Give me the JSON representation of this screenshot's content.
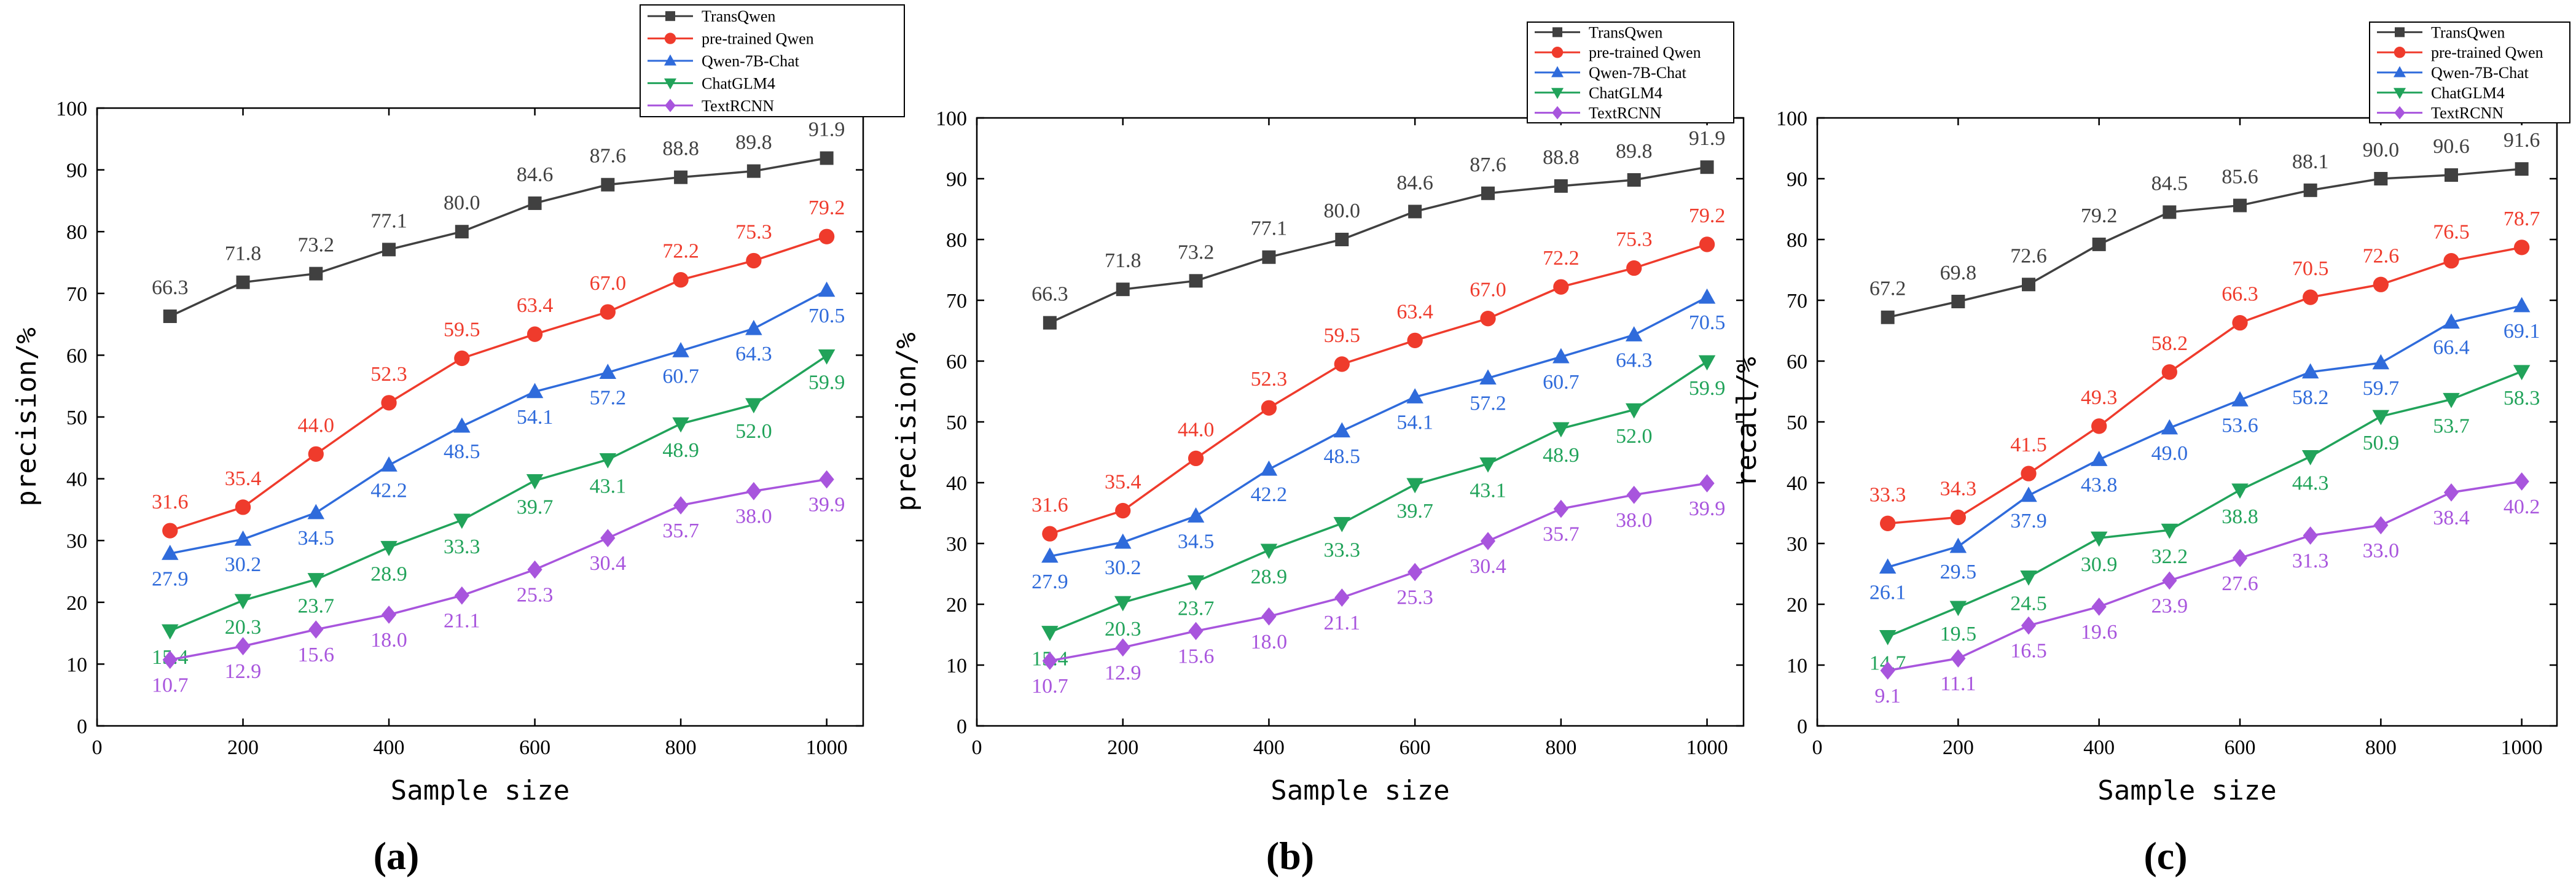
{
  "figure": {
    "panel_labels": [
      "(a)",
      "(b)",
      "(c)"
    ]
  },
  "colors": {
    "TransQwen": "#404040",
    "pre-trained Qwen": "#ef3b2c",
    "Qwen-7B-Chat": "#2f6bdb",
    "ChatGLM4": "#21a35a",
    "TextRCNN": "#a855dd"
  },
  "chart_data": [
    {
      "type": "line",
      "panel": "(a)",
      "xlabel": "Sample size",
      "ylabel": "precision/%",
      "xlim": [
        0,
        1050
      ],
      "ylim": [
        0,
        100
      ],
      "x_ticks": [
        0,
        200,
        400,
        600,
        800,
        1000
      ],
      "y_ticks": [
        0,
        10,
        20,
        30,
        40,
        50,
        60,
        70,
        80,
        90,
        100
      ],
      "legend_position": "top-right",
      "x": [
        100,
        200,
        300,
        400,
        500,
        600,
        700,
        800,
        900,
        1000
      ],
      "series": [
        {
          "name": "TransQwen",
          "marker": "square",
          "values": [
            66.3,
            71.8,
            73.2,
            77.1,
            80.0,
            84.6,
            87.6,
            88.8,
            89.8,
            91.9
          ],
          "labels": [
            "66.3",
            "71.8",
            "73.2",
            "77.1",
            "80.0",
            "84.6",
            "87.6",
            "88.8",
            "89.8",
            "91.9"
          ]
        },
        {
          "name": "pre-trained Qwen",
          "marker": "circle",
          "values": [
            31.6,
            35.4,
            44.0,
            52.3,
            59.5,
            63.4,
            67.0,
            72.2,
            75.3,
            79.2
          ],
          "labels": [
            "31.6",
            "35.4",
            "44.0",
            "52.3",
            "59.5",
            "63.4",
            "67.0",
            "72.2",
            "75.3",
            "79.2"
          ]
        },
        {
          "name": "Qwen-7B-Chat",
          "marker": "triangle-up",
          "values": [
            27.9,
            30.2,
            34.5,
            42.2,
            48.5,
            54.1,
            57.2,
            60.7,
            64.3,
            70.5
          ],
          "labels": [
            "27.9",
            "30.2",
            "34.5",
            "42.2",
            "48.5",
            "54.1",
            "57.2",
            "60.7",
            "64.3",
            "70.5"
          ]
        },
        {
          "name": "ChatGLM4",
          "marker": "triangle-down",
          "values": [
            15.4,
            20.3,
            23.7,
            28.9,
            33.3,
            39.7,
            43.1,
            48.9,
            52.0,
            59.9
          ],
          "labels": [
            "15.4",
            "20.3",
            "23.7",
            "28.9",
            "33.3",
            "39.7",
            "43.1",
            "48.9",
            "52.0",
            "59.9"
          ]
        },
        {
          "name": "TextRCNN",
          "marker": "diamond",
          "values": [
            10.7,
            12.9,
            15.6,
            18.0,
            21.1,
            25.3,
            30.4,
            35.7,
            38.0,
            39.9
          ],
          "labels": [
            "10.7",
            "12.9",
            "15.6",
            "18.0",
            "21.1",
            "25.3",
            "30.4",
            "35.7",
            "38.0",
            "39.9"
          ]
        }
      ]
    },
    {
      "type": "line",
      "panel": "(b)",
      "xlabel": "Sample size",
      "ylabel": "precision/%",
      "xlim": [
        0,
        1050
      ],
      "ylim": [
        0,
        100
      ],
      "x_ticks": [
        0,
        200,
        400,
        600,
        800,
        1000
      ],
      "y_ticks": [
        0,
        10,
        20,
        30,
        40,
        50,
        60,
        70,
        80,
        90,
        100
      ],
      "legend_position": "top-right",
      "x": [
        100,
        200,
        300,
        400,
        500,
        600,
        700,
        800,
        900,
        1000
      ],
      "series": [
        {
          "name": "TransQwen",
          "marker": "square",
          "values": [
            66.3,
            71.8,
            73.2,
            77.1,
            80.0,
            84.6,
            87.6,
            88.8,
            89.8,
            91.9
          ],
          "labels": [
            "66.3",
            "71.8",
            "73.2",
            "77.1",
            "80.0",
            "84.6",
            "87.6",
            "88.8",
            "89.8",
            "91.9"
          ]
        },
        {
          "name": "pre-trained Qwen",
          "marker": "circle",
          "values": [
            31.6,
            35.4,
            44.0,
            52.3,
            59.5,
            63.4,
            67.0,
            72.2,
            75.3,
            79.2
          ],
          "labels": [
            "31.6",
            "35.4",
            "44.0",
            "52.3",
            "59.5",
            "63.4",
            "67.0",
            "72.2",
            "75.3",
            "79.2"
          ]
        },
        {
          "name": "Qwen-7B-Chat",
          "marker": "triangle-up",
          "values": [
            27.9,
            30.2,
            34.5,
            42.2,
            48.5,
            54.1,
            57.2,
            60.7,
            64.3,
            70.5
          ],
          "labels": [
            "27.9",
            "30.2",
            "34.5",
            "42.2",
            "48.5",
            "54.1",
            "57.2",
            "60.7",
            "64.3",
            "70.5"
          ]
        },
        {
          "name": "ChatGLM4",
          "marker": "triangle-down",
          "values": [
            15.4,
            20.3,
            23.7,
            28.9,
            33.3,
            39.7,
            43.1,
            48.9,
            52.0,
            59.9
          ],
          "labels": [
            "15.4",
            "20.3",
            "23.7",
            "28.9",
            "33.3",
            "39.7",
            "43.1",
            "48.9",
            "52.0",
            "59.9"
          ]
        },
        {
          "name": "TextRCNN",
          "marker": "diamond",
          "values": [
            10.7,
            12.9,
            15.6,
            18.0,
            21.1,
            25.3,
            30.4,
            35.7,
            38.0,
            39.9
          ],
          "labels": [
            "10.7",
            "12.9",
            "15.6",
            "18.0",
            "21.1",
            "25.3",
            "30.4",
            "35.7",
            "38.0",
            "39.9"
          ]
        }
      ]
    },
    {
      "type": "line",
      "panel": "(c)",
      "xlabel": "Sample size",
      "ylabel": "recall/%",
      "xlim": [
        0,
        1050
      ],
      "ylim": [
        0,
        100
      ],
      "x_ticks": [
        0,
        200,
        400,
        600,
        800,
        1000
      ],
      "y_ticks": [
        0,
        10,
        20,
        30,
        40,
        50,
        60,
        70,
        80,
        90,
        100
      ],
      "legend_position": "top-right",
      "x": [
        100,
        200,
        300,
        400,
        500,
        600,
        700,
        800,
        900,
        1000
      ],
      "series": [
        {
          "name": "TransQwen",
          "marker": "square",
          "values": [
            67.2,
            69.8,
            72.6,
            79.2,
            84.5,
            85.6,
            88.1,
            90.0,
            90.6,
            91.6
          ],
          "labels": [
            "67.2",
            "69.8",
            "72.6",
            "79.2",
            "84.5",
            "85.6",
            "88.1",
            "90.0",
            "90.6",
            "91.6"
          ]
        },
        {
          "name": "pre-trained Qwen",
          "marker": "circle",
          "values": [
            33.3,
            34.3,
            41.5,
            49.3,
            58.2,
            66.3,
            70.5,
            72.6,
            76.5,
            78.7
          ],
          "labels": [
            "33.3",
            "34.3",
            "41.5",
            "49.3",
            "58.2",
            "66.3",
            "70.5",
            "72.6",
            "76.5",
            "78.7"
          ]
        },
        {
          "name": "Qwen-7B-Chat",
          "marker": "triangle-up",
          "values": [
            26.1,
            29.5,
            37.9,
            43.8,
            49.0,
            53.6,
            58.2,
            59.7,
            66.4,
            69.1
          ],
          "labels": [
            "26.1",
            "29.5",
            "37.9",
            "43.8",
            "49.0",
            "53.6",
            "58.2",
            "59.7",
            "66.4",
            "69.1"
          ]
        },
        {
          "name": "ChatGLM4",
          "marker": "triangle-down",
          "values": [
            14.7,
            19.5,
            24.5,
            30.9,
            32.2,
            38.8,
            44.3,
            50.9,
            53.7,
            58.3
          ],
          "labels": [
            "14.7",
            "19.5",
            "24.5",
            "30.9",
            "32.2",
            "38.8",
            "44.3",
            "50.9",
            "53.7",
            "58.3"
          ]
        },
        {
          "name": "TextRCNN",
          "marker": "diamond",
          "values": [
            9.1,
            11.1,
            16.5,
            19.6,
            23.9,
            27.6,
            31.3,
            33.0,
            38.4,
            40.2
          ],
          "labels": [
            "9.1",
            "11.1",
            "16.5",
            "19.6",
            "23.9",
            "27.6",
            "31.3",
            "33.0",
            "38.4",
            "40.2"
          ]
        }
      ]
    }
  ]
}
